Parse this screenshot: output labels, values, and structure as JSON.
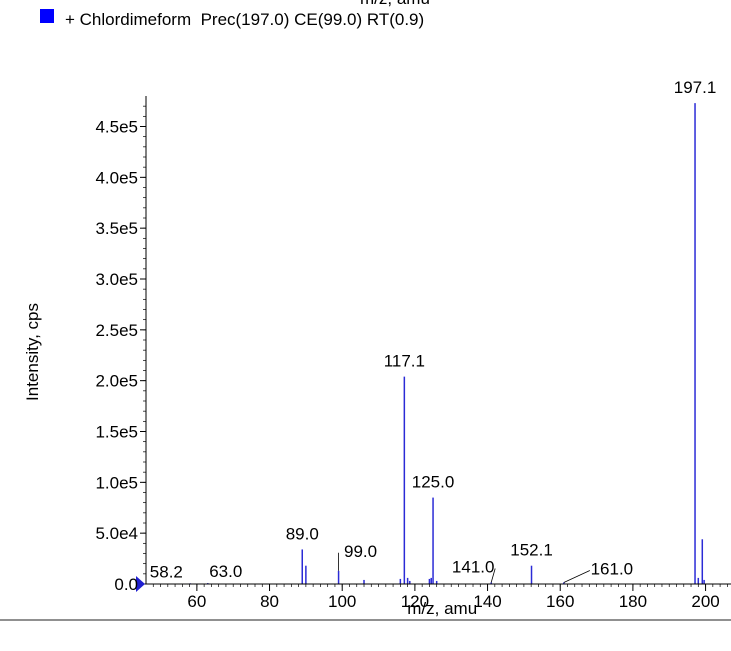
{
  "top_cut_label": "m/z, amu",
  "legend": {
    "label": "+ Chlordimeform  Prec(197.0) CE(99.0) RT(0.9)",
    "color": "#0000ff"
  },
  "colors": {
    "series": "#2b2bd6",
    "marker": "#1f1fd0",
    "axis": "#000000"
  },
  "chart_data": {
    "type": "bar",
    "title": "",
    "xlabel": "m/z, amu",
    "ylabel": "Intensity, cps",
    "xlim": [
      46,
      207
    ],
    "ylim": [
      0,
      480000
    ],
    "grid": false,
    "x_ticks": [
      60,
      80,
      100,
      120,
      140,
      160,
      180,
      200
    ],
    "y_ticks": [
      0,
      50000,
      100000,
      150000,
      200000,
      250000,
      300000,
      350000,
      400000,
      450000
    ],
    "y_tick_labels": [
      "0.0",
      "5.0e4",
      "1.0e5",
      "1.5e5",
      "2.0e5",
      "2.5e5",
      "3.0e5",
      "3.5e5",
      "4.0e5",
      "4.5e5"
    ],
    "peaks": [
      {
        "x": 58.2,
        "y": 700,
        "label": "58.2"
      },
      {
        "x": 63.0,
        "y": 900,
        "label": "63.0"
      },
      {
        "x": 89.0,
        "y": 34000,
        "label": "89.0"
      },
      {
        "x": 90.0,
        "y": 18000
      },
      {
        "x": 99.0,
        "y": 13000,
        "label": "99.0"
      },
      {
        "x": 106.0,
        "y": 4000
      },
      {
        "x": 116.0,
        "y": 5000
      },
      {
        "x": 117.1,
        "y": 204000,
        "label": "117.1"
      },
      {
        "x": 118.0,
        "y": 6000
      },
      {
        "x": 118.6,
        "y": 3000
      },
      {
        "x": 124.0,
        "y": 5000
      },
      {
        "x": 124.5,
        "y": 6000
      },
      {
        "x": 125.0,
        "y": 85000,
        "label": "125.0"
      },
      {
        "x": 126.0,
        "y": 3000
      },
      {
        "x": 141.0,
        "y": 1500,
        "label": "141.0"
      },
      {
        "x": 152.1,
        "y": 18000,
        "label": "152.1"
      },
      {
        "x": 161.0,
        "y": 1500,
        "label": "161.0"
      },
      {
        "x": 197.1,
        "y": 473000,
        "label": "197.1"
      },
      {
        "x": 198.0,
        "y": 6000
      },
      {
        "x": 199.1,
        "y": 44000
      },
      {
        "x": 199.6,
        "y": 4000
      }
    ]
  }
}
